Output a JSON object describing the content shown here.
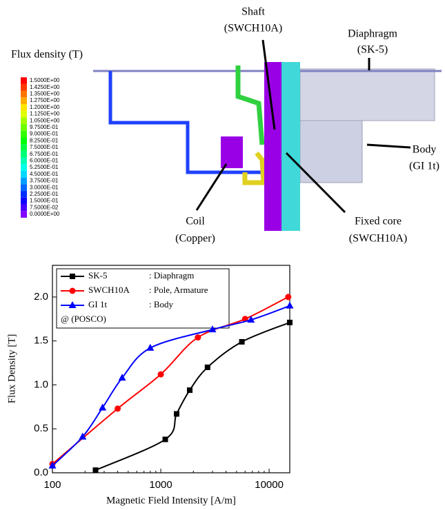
{
  "diagram": {
    "colorbar_title": "Flux density (T)",
    "colorbar_labels": [
      "1.5000E+00",
      "1.4250E+00",
      "1.3500E+00",
      "1.2750E+00",
      "1.2000E+00",
      "1.1250E+00",
      "1.0500E+00",
      "9.7500E-01",
      "9.0000E-01",
      "8.2500E-01",
      "7.5000E-01",
      "6.7500E-01",
      "6.0000E-01",
      "5.2500E-01",
      "4.5000E-01",
      "3.7500E-01",
      "3.0000E-01",
      "2.2500E-01",
      "1.5000E-01",
      "7.5000E-02",
      "0.0000E+00"
    ],
    "annotations": [
      {
        "name": "Shaft",
        "material": "(SWCH10A)"
      },
      {
        "name": "Diaphragm",
        "material": "(SK-5)"
      },
      {
        "name": "Body",
        "material": "(GI 1t)"
      },
      {
        "name": "Coil",
        "material": "(Copper)"
      },
      {
        "name": "Fixed core",
        "material": "(SWCH10A)"
      }
    ]
  },
  "chart_data": {
    "type": "line",
    "x_label": "Magnetic Field Intensity [A/m]",
    "y_label": "Flux Density [T]",
    "log_x": true,
    "xlim": [
      100,
      15500
    ],
    "xticks": [
      100,
      1000,
      10000
    ],
    "ylim": [
      0,
      2.36
    ],
    "yticks": [
      {
        "value": 0,
        "label": "0.0"
      },
      {
        "value": 0.5,
        "label": "0.5"
      },
      {
        "value": 1,
        "label": "1.0"
      },
      {
        "value": 1.5,
        "label": "1.5"
      },
      {
        "value": 2,
        "label": "2.0"
      }
    ],
    "legend_note": "@ (POSCO)",
    "series": [
      {
        "name": "SK-5",
        "role": ": Diaphragm",
        "color": "#000000",
        "marker": "square",
        "x": [
          250,
          1100,
          1400,
          1850,
          2700,
          5600,
          15500
        ],
        "values": [
          0.03,
          0.38,
          0.67,
          0.94,
          1.2,
          1.49,
          1.71
        ]
      },
      {
        "name": "SWCH10A",
        "role": ": Pole, Armature",
        "color": "#ff0000",
        "marker": "circle",
        "x": [
          100,
          400,
          1000,
          2200,
          6000,
          15000
        ],
        "values": [
          0.1,
          0.73,
          1.12,
          1.54,
          1.75,
          2.0
        ]
      },
      {
        "name": "GI 1t",
        "role": ": Body",
        "color": "#0000ff",
        "marker": "triangle",
        "x": [
          100,
          190,
          290,
          440,
          800,
          3000,
          6800,
          15500
        ],
        "values": [
          0.08,
          0.41,
          0.74,
          1.08,
          1.42,
          1.63,
          1.74,
          1.9
        ]
      }
    ]
  }
}
